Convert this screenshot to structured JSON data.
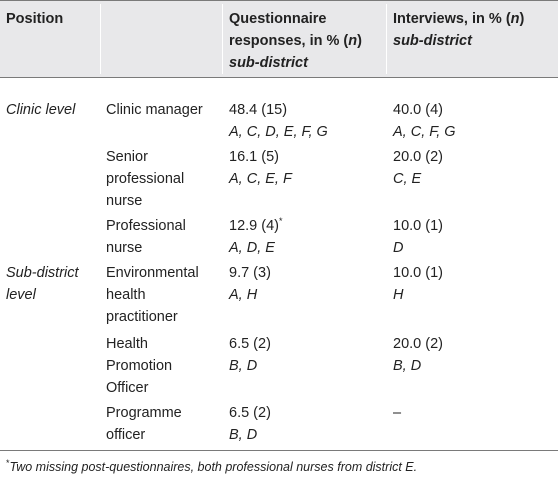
{
  "headers": {
    "position": "Position",
    "questionnaire_line1": "Questionnaire",
    "questionnaire_line2_pre": "responses, in % (",
    "questionnaire_line2_n": "n",
    "questionnaire_line2_post": ")",
    "questionnaire_line3": "sub-district",
    "interviews_line1_pre": "Interviews, in % (",
    "interviews_line1_n": "n",
    "interviews_line1_post": ")",
    "interviews_line2": "sub-district"
  },
  "groups": {
    "clinic": "Clinic level",
    "subdistrict_line1": "Sub-district",
    "subdistrict_line2": "level"
  },
  "rows": [
    {
      "role_lines": [
        "Clinic manager"
      ],
      "q_value": "48.4 (15)",
      "q_marker": "",
      "q_districts": "A, C, D, E, F, G",
      "i_value": "40.0 (4)",
      "i_districts": "A, C, F, G"
    },
    {
      "role_lines": [
        "Senior",
        "professional",
        "nurse"
      ],
      "q_value": "16.1 (5)",
      "q_marker": "",
      "q_districts": "A, C, E, F",
      "i_value": "20.0 (2)",
      "i_districts": "C, E"
    },
    {
      "role_lines": [
        "Professional",
        "nurse"
      ],
      "q_value": "12.9 (4)",
      "q_marker": "*",
      "q_districts": "A, D, E",
      "i_value": "10.0 (1)",
      "i_districts": "D"
    },
    {
      "role_lines": [
        "Environmental",
        "health",
        "practitioner"
      ],
      "q_value": "9.7 (3)",
      "q_marker": "",
      "q_districts": "A, H",
      "i_value": "10.0 (1)",
      "i_districts": "H"
    },
    {
      "role_lines": [
        "Health",
        "Promotion",
        "Officer"
      ],
      "q_value": "6.5 (2)",
      "q_marker": "",
      "q_districts": "B, D",
      "i_value": "20.0 (2)",
      "i_districts": "B, D"
    },
    {
      "role_lines": [
        "Programme",
        "officer"
      ],
      "q_value": "6.5 (2)",
      "q_marker": "",
      "q_districts": "B, D",
      "i_value": "–",
      "i_districts": ""
    }
  ],
  "footnote": {
    "marker": "*",
    "text": "Two missing post-questionnaires, both professional nurses from district E."
  }
}
